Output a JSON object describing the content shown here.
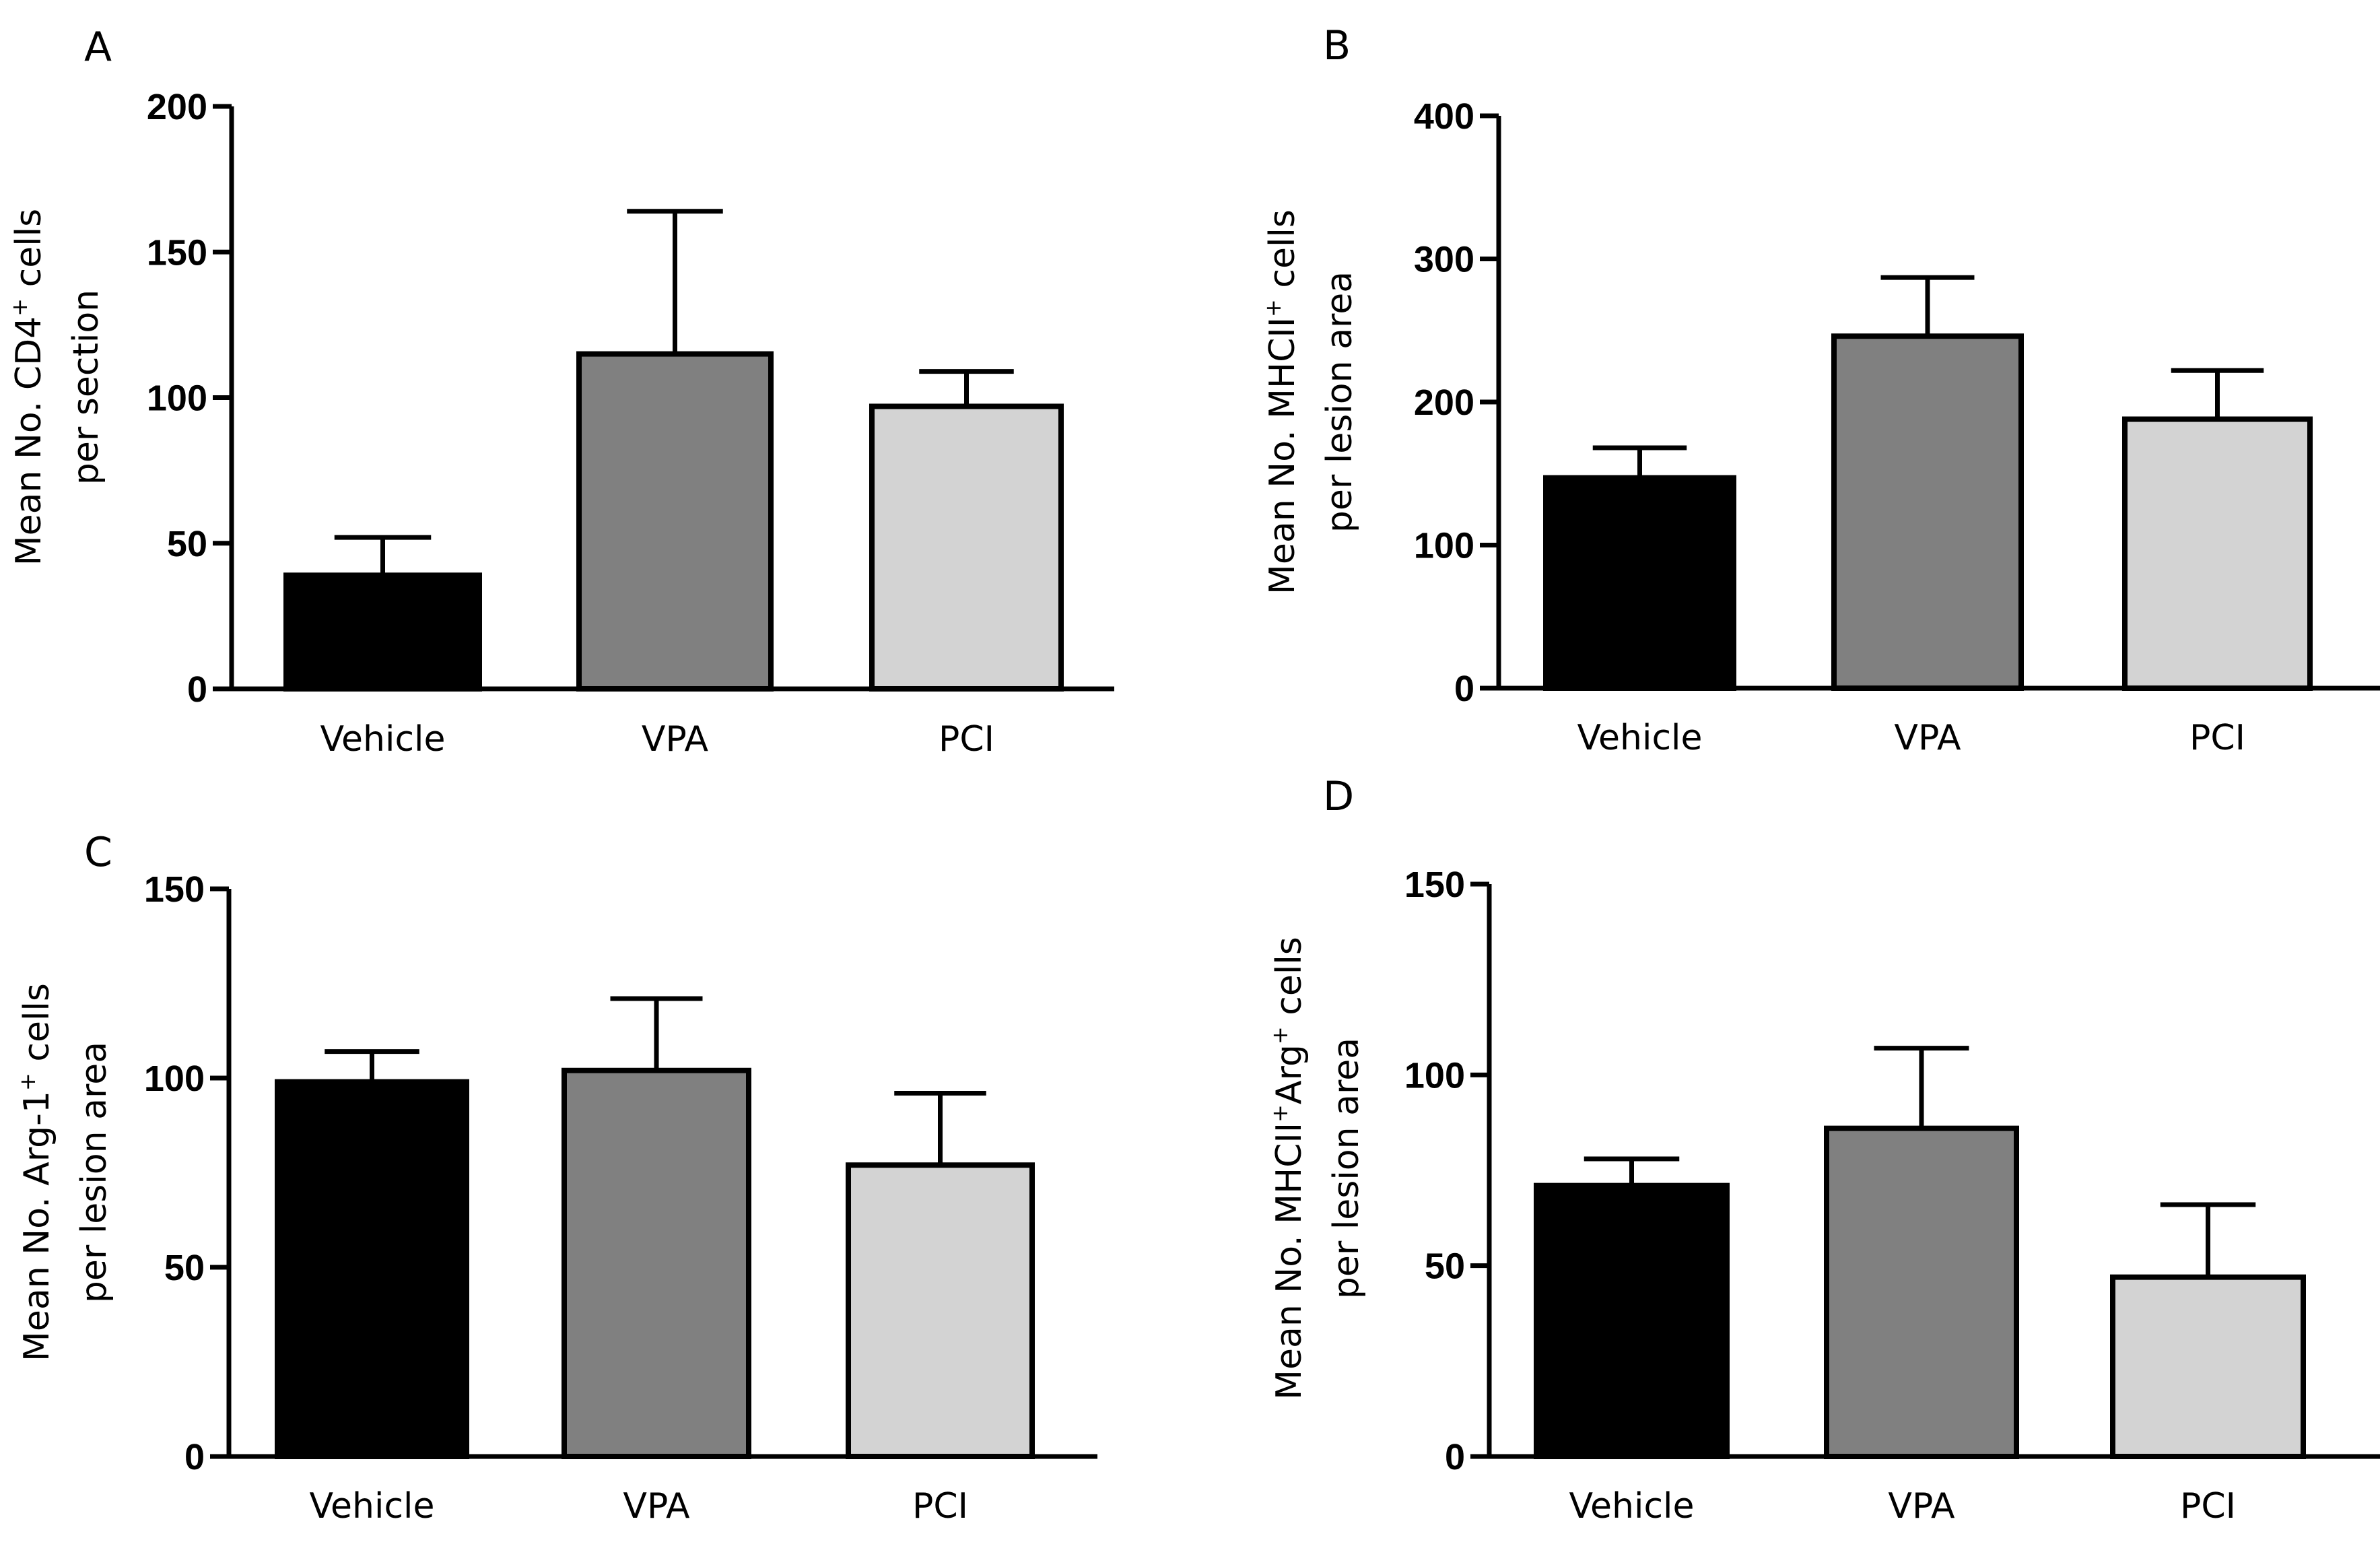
{
  "figure": {
    "panels": [
      {
        "letter": "A",
        "ylabel_line1": {
          "before": "Mean No. CD4",
          "sup": "+",
          "after": " cells"
        },
        "ylabel_line2": "per section"
      },
      {
        "letter": "B",
        "ylabel_line1": {
          "before": "Mean No. MHCII",
          "sup": "+",
          "after": " cells"
        },
        "ylabel_line2": "per lesion area"
      },
      {
        "letter": "C",
        "ylabel_line1": {
          "before": "Mean No. Arg-1",
          "sup": "+",
          "after": " cells"
        },
        "ylabel_line2": "per lesion area"
      },
      {
        "letter": "D",
        "ylabel_line1": {
          "before": "Mean No. MHCII",
          "sup": "+",
          "mid": "Arg",
          "sup2": "+",
          "after": " cells"
        },
        "ylabel_line2": "per lesion area"
      }
    ]
  },
  "chart_data": [
    {
      "panel": "A",
      "type": "bar",
      "categories": [
        "Vehicle",
        "VPA",
        "PCI"
      ],
      "values": [
        39,
        115,
        97
      ],
      "errors": [
        13,
        49,
        12
      ],
      "colors": [
        "#000000",
        "#808080",
        "#d3d3d3"
      ],
      "ylabel": "Mean No. CD4+ cells per section",
      "ylim": [
        0,
        200
      ],
      "yticks": [
        0,
        50,
        100,
        150,
        200
      ]
    },
    {
      "panel": "B",
      "type": "bar",
      "categories": [
        "Vehicle",
        "VPA",
        "PCI"
      ],
      "values": [
        147,
        246,
        188
      ],
      "errors": [
        21,
        41,
        34
      ],
      "colors": [
        "#000000",
        "#808080",
        "#d3d3d3"
      ],
      "ylabel": "Mean No. MHCII+ cells per lesion area",
      "ylim": [
        0,
        400
      ],
      "yticks": [
        0,
        100,
        200,
        300,
        400
      ]
    },
    {
      "panel": "C",
      "type": "bar",
      "categories": [
        "Vehicle",
        "VPA",
        "PCI"
      ],
      "values": [
        99,
        102,
        77
      ],
      "errors": [
        8,
        19,
        19
      ],
      "colors": [
        "#000000",
        "#808080",
        "#d3d3d3"
      ],
      "ylabel": "Mean No. Arg-1+ cells per lesion area",
      "ylim": [
        0,
        150
      ],
      "yticks": [
        0,
        50,
        100,
        150
      ]
    },
    {
      "panel": "D",
      "type": "bar",
      "categories": [
        "Vehicle",
        "VPA",
        "PCI"
      ],
      "values": [
        71,
        86,
        47
      ],
      "errors": [
        7,
        21,
        19
      ],
      "colors": [
        "#000000",
        "#808080",
        "#d3d3d3"
      ],
      "ylabel": "Mean No. MHCII+Arg+ cells per lesion area",
      "ylim": [
        0,
        150
      ],
      "yticks": [
        0,
        50,
        100,
        150
      ]
    }
  ]
}
